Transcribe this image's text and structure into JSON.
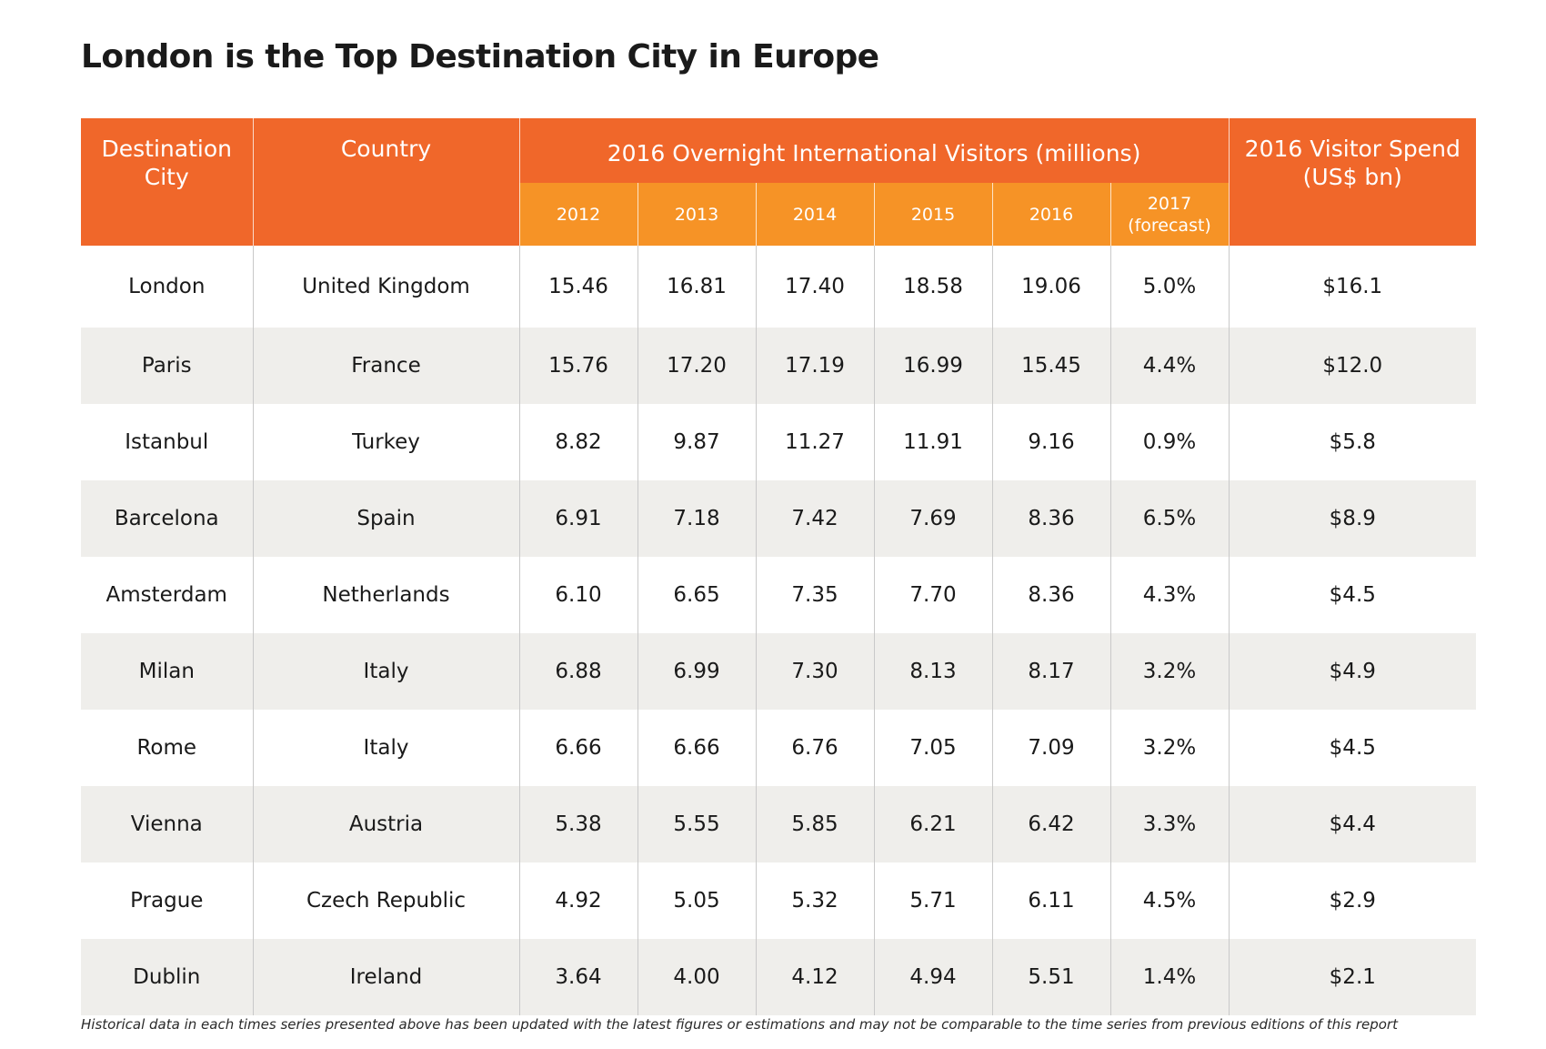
{
  "title": "London is the Top Destination City in Europe",
  "header": {
    "city": "Destination City",
    "country": "Country",
    "visitors_group": "2016 Overnight International Visitors (millions)",
    "years": [
      "2012",
      "2013",
      "2014",
      "2015",
      "2016",
      "2017 (forecast)"
    ],
    "spend": "2016 Visitor Spend (US$ bn)"
  },
  "footnote": "Historical data in each times series presented above has been updated with the latest figures or estimations and may not be comparable to the time series from previous editions of this report",
  "colors": {
    "header_primary": "#f0672a",
    "header_secondary": "#f69326",
    "row_alt": "#efeeeb"
  },
  "chart_data": {
    "type": "table",
    "title": "London is the Top Destination City in Europe",
    "columns": [
      "Destination City",
      "Country",
      "2012",
      "2013",
      "2014",
      "2015",
      "2016",
      "2017 (forecast)",
      "2016 Visitor Spend (US$ bn)"
    ],
    "rows": [
      [
        "London",
        "United Kingdom",
        "15.46",
        "16.81",
        "17.40",
        "18.58",
        "19.06",
        "5.0%",
        "$16.1"
      ],
      [
        "Paris",
        "France",
        "15.76",
        "17.20",
        "17.19",
        "16.99",
        "15.45",
        "4.4%",
        "$12.0"
      ],
      [
        "Istanbul",
        "Turkey",
        "8.82",
        "9.87",
        "11.27",
        "11.91",
        "9.16",
        "0.9%",
        "$5.8"
      ],
      [
        "Barcelona",
        "Spain",
        "6.91",
        "7.18",
        "7.42",
        "7.69",
        "8.36",
        "6.5%",
        "$8.9"
      ],
      [
        "Amsterdam",
        "Netherlands",
        "6.10",
        "6.65",
        "7.35",
        "7.70",
        "8.36",
        "4.3%",
        "$4.5"
      ],
      [
        "Milan",
        "Italy",
        "6.88",
        "6.99",
        "7.30",
        "8.13",
        "8.17",
        "3.2%",
        "$4.9"
      ],
      [
        "Rome",
        "Italy",
        "6.66",
        "6.66",
        "6.76",
        "7.05",
        "7.09",
        "3.2%",
        "$4.5"
      ],
      [
        "Vienna",
        "Austria",
        "5.38",
        "5.55",
        "5.85",
        "6.21",
        "6.42",
        "3.3%",
        "$4.4"
      ],
      [
        "Prague",
        "Czech Republic",
        "4.92",
        "5.05",
        "5.32",
        "5.71",
        "6.11",
        "4.5%",
        "$2.9"
      ],
      [
        "Dublin",
        "Ireland",
        "3.64",
        "4.00",
        "4.12",
        "4.94",
        "5.51",
        "1.4%",
        "$2.1"
      ]
    ]
  }
}
